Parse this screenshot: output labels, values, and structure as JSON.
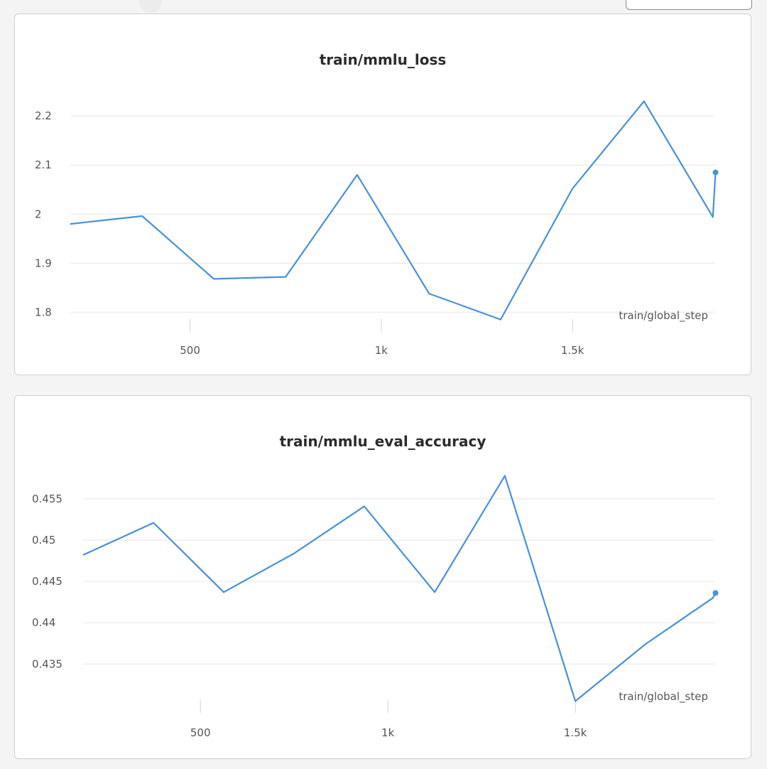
{
  "colors": {
    "series": "#4a90d9",
    "grid": "#e6e6e6",
    "tick_mark": "#d2d2d2",
    "text": "#555555"
  },
  "chart_data": [
    {
      "type": "line",
      "title": "train/mmlu_loss",
      "xlabel": "train/global_step",
      "ylabel": "",
      "x_ticks": [
        500,
        1000,
        1500
      ],
      "x_tick_labels": [
        "500",
        "1k",
        "1.5k"
      ],
      "y_ticks": [
        1.8,
        1.9,
        2,
        2.1,
        2.2
      ],
      "y_tick_labels": [
        "1.8",
        "1.9",
        "2",
        "2.1",
        "2.2"
      ],
      "xlim": [
        187,
        1873
      ],
      "ylim": [
        1.77,
        2.28
      ],
      "grid": "horizontal",
      "series": [
        {
          "x": [
            187,
            375,
            562,
            750,
            937,
            1125,
            1312,
            1500,
            1687,
            1867,
            1874
          ],
          "y": [
            1.98,
            1.996,
            1.868,
            1.872,
            2.08,
            1.838,
            1.785,
            2.052,
            2.23,
            1.994,
            2.085
          ]
        }
      ]
    },
    {
      "type": "line",
      "title": "train/mmlu_eval_accuracy",
      "xlabel": "train/global_step",
      "ylabel": "",
      "x_ticks": [
        500,
        1000,
        1500
      ],
      "x_tick_labels": [
        "500",
        "1k",
        "1.5k"
      ],
      "y_ticks": [
        0.435,
        0.44,
        0.445,
        0.45,
        0.455
      ],
      "y_tick_labels": [
        "0.435",
        "0.44",
        "0.445",
        "0.45",
        "0.455"
      ],
      "xlim": [
        187,
        1873
      ],
      "ylim": [
        0.4296,
        0.4599
      ],
      "grid": "horizontal",
      "series": [
        {
          "x": [
            187,
            375,
            562,
            750,
            937,
            1125,
            1312,
            1500,
            1687,
            1867,
            1874
          ],
          "y": [
            0.4482,
            0.4521,
            0.4437,
            0.4484,
            0.4541,
            0.4437,
            0.4578,
            0.4305,
            0.4374,
            0.443,
            0.4436
          ]
        }
      ]
    }
  ]
}
